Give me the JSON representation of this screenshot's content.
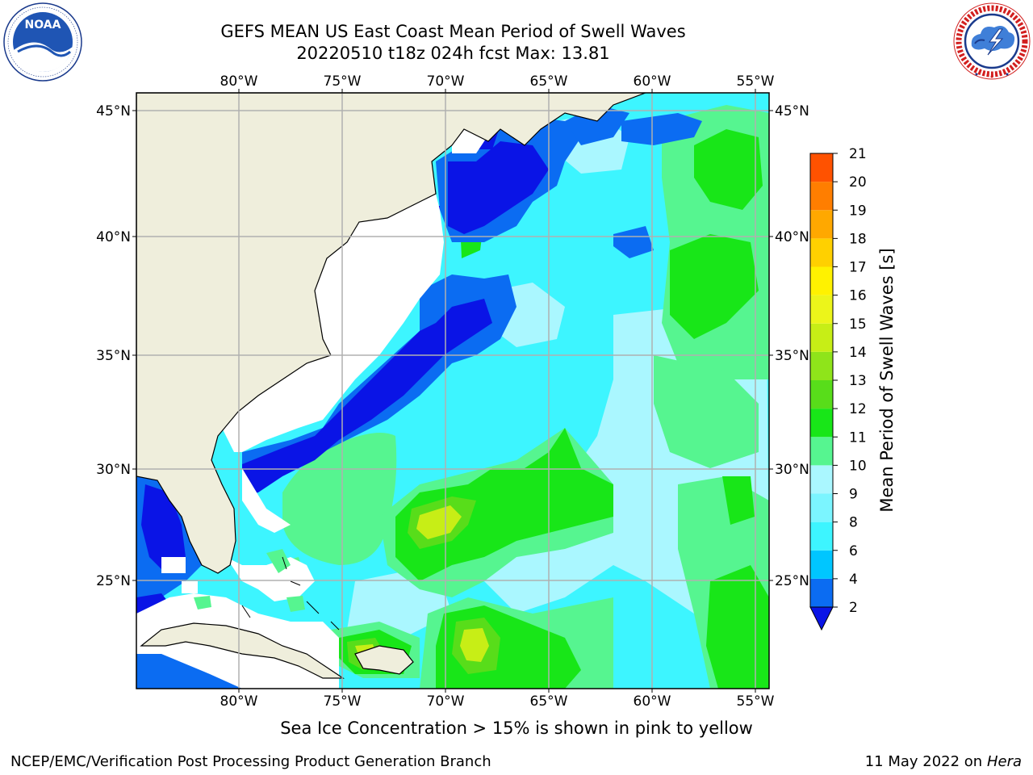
{
  "title_line1": "GEFS MEAN US East Coast Mean Period of Swell Waves",
  "title_line2": "20220510 t18z 024h fcst   Max: 13.81",
  "caption": "Sea Ice Concentration > 15% is shown in pink to yellow",
  "footer_left": "NCEP/EMC/Verification Post Processing Product Generation Branch",
  "footer_right_date": "11 May 2022 on",
  "footer_right_host": "Hera",
  "colorbar": {
    "label": "Mean Period of Swell Waves [s]",
    "ticks": [
      "2",
      "4",
      "6",
      "8",
      "9",
      "10",
      "11",
      "12",
      "13",
      "14",
      "15",
      "16",
      "17",
      "18",
      "19",
      "20",
      "21"
    ],
    "colors": [
      "#0b6cf2",
      "#00c6ff",
      "#3df5ff",
      "#7bf5ff",
      "#aaf7ff",
      "#56f590",
      "#18e618",
      "#58dd1a",
      "#8fe41a",
      "#c7ee16",
      "#ecf51a",
      "#fff200",
      "#ffd000",
      "#ffa800",
      "#ff7e00",
      "#ff5200",
      "#ff2a00",
      "#f80000"
    ],
    "extend_color": "#0a14e6"
  },
  "map": {
    "lon_labels": [
      "80°W",
      "75°W",
      "70°W",
      "65°W",
      "60°W",
      "55°W"
    ],
    "lat_labels": [
      "45°N",
      "40°N",
      "35°N",
      "30°N",
      "25°N"
    ],
    "land_color": "#efeedc",
    "ocean_base_color": "#3df5ff"
  },
  "logos": {
    "left": {
      "text": "NOAA",
      "ring_text": "NATIONAL OCEANIC AND ATMOSPHERIC ADMINISTRATION · U.S. DEPARTMENT OF COMMERCE"
    },
    "right": {
      "ring_text": "NATIONAL WEATHER SERVICE"
    }
  }
}
